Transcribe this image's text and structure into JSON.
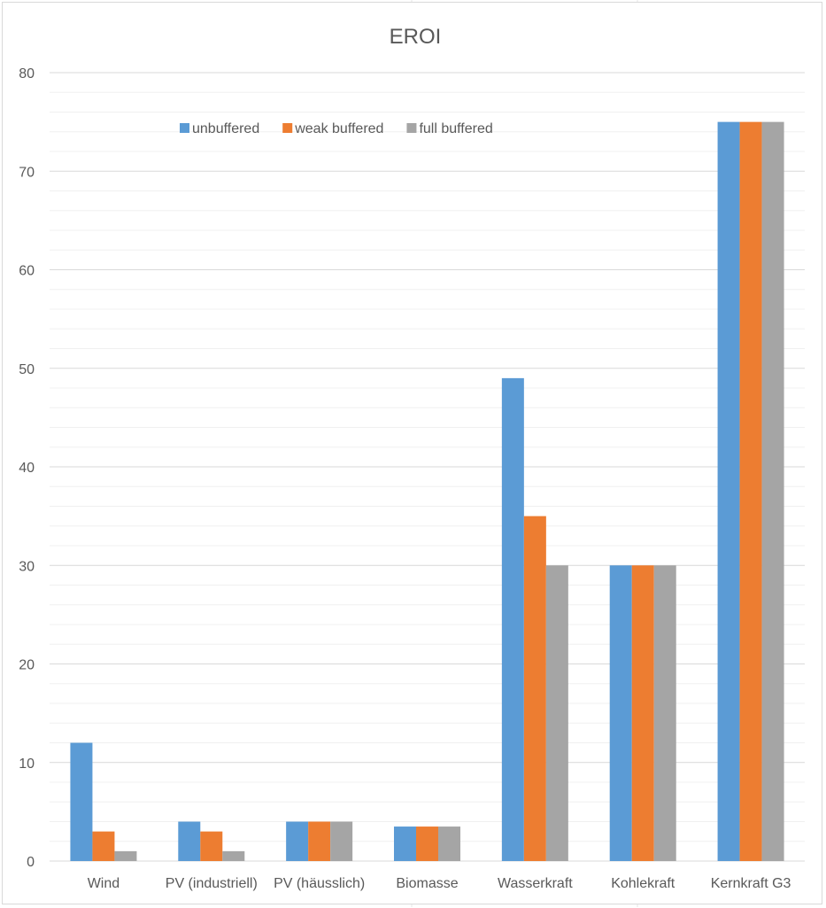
{
  "chart_data": {
    "type": "bar",
    "title": "EROI",
    "xlabel": "",
    "ylabel": "",
    "ylim": [
      0,
      80
    ],
    "yticks": [
      0,
      10,
      20,
      30,
      40,
      50,
      60,
      70,
      80
    ],
    "minor_grid_step": 2,
    "grid": true,
    "legend_position": "top",
    "categories": [
      "Wind",
      "PV (industriell)",
      "PV (häusslich)",
      "Biomasse",
      "Wasserkraft",
      "Kohlekraft",
      "Kernkraft G3"
    ],
    "series": [
      {
        "name": "unbuffered",
        "color": "#5b9bd5",
        "values": [
          12,
          4,
          4,
          3.5,
          49,
          30,
          75
        ]
      },
      {
        "name": "weak buffered",
        "color": "#ed7d31",
        "values": [
          3,
          3,
          4,
          3.5,
          35,
          30,
          75
        ]
      },
      {
        "name": "full buffered",
        "color": "#a5a5a5",
        "values": [
          1,
          1,
          4,
          3.5,
          30,
          30,
          75
        ]
      }
    ]
  }
}
